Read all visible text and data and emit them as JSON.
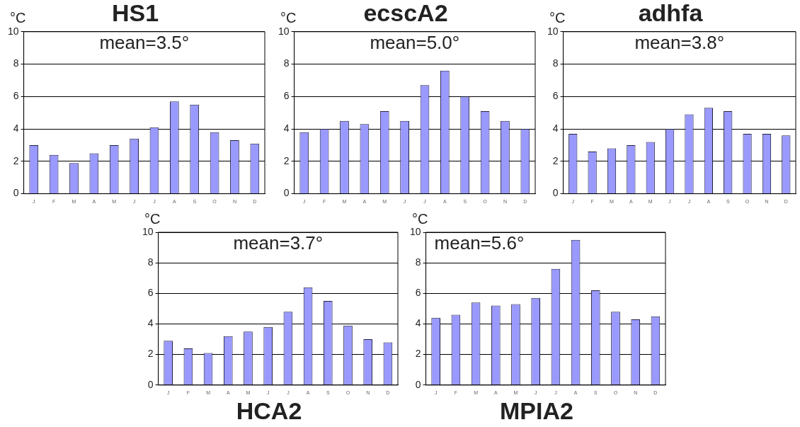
{
  "chart_data": [
    {
      "type": "bar",
      "title": "HS1",
      "ylabel": "°C",
      "annotations": [
        "mean=3.5°"
      ],
      "categories": [
        "J",
        "F",
        "M",
        "A",
        "M",
        "J",
        "J",
        "A",
        "S",
        "O",
        "N",
        "D"
      ],
      "values": [
        3.0,
        2.4,
        1.9,
        2.5,
        3.0,
        3.4,
        4.1,
        5.7,
        5.5,
        3.8,
        3.3,
        3.1
      ],
      "color": "#9999ff",
      "ylim": [
        0,
        10
      ],
      "yticks": [
        0,
        2,
        4,
        6,
        8,
        10
      ],
      "grid": "y"
    },
    {
      "type": "bar",
      "title": "ecscA2",
      "ylabel": "°C",
      "annotations": [
        "mean=5.0°"
      ],
      "categories": [
        "J",
        "F",
        "M",
        "A",
        "M",
        "J",
        "J",
        "A",
        "S",
        "O",
        "N",
        "D"
      ],
      "values": [
        3.8,
        4.0,
        4.5,
        4.3,
        5.1,
        4.5,
        6.7,
        7.6,
        6.0,
        5.1,
        4.5,
        4.0
      ],
      "color": "#9999ff",
      "ylim": [
        0,
        10
      ],
      "yticks": [
        0,
        2,
        4,
        6,
        8,
        10
      ],
      "grid": "y"
    },
    {
      "type": "bar",
      "title": "adhfa",
      "ylabel": "°C",
      "annotations": [
        "mean=3.8°"
      ],
      "categories": [
        "J",
        "F",
        "M",
        "A",
        "M",
        "J",
        "J",
        "A",
        "S",
        "O",
        "N",
        "D"
      ],
      "values": [
        3.7,
        2.6,
        2.8,
        3.0,
        3.2,
        4.0,
        4.9,
        5.3,
        5.1,
        3.7,
        3.7,
        3.6
      ],
      "color": "#9999ff",
      "ylim": [
        0,
        10
      ],
      "yticks": [
        0,
        2,
        4,
        6,
        8,
        10
      ],
      "grid": "y"
    },
    {
      "type": "bar",
      "title": "HCA2",
      "ylabel": "°C",
      "annotations": [
        "mean=3.7°"
      ],
      "categories": [
        "J",
        "F",
        "M",
        "A",
        "M",
        "J",
        "J",
        "A",
        "S",
        "O",
        "N",
        "D"
      ],
      "values": [
        2.9,
        2.4,
        2.1,
        3.2,
        3.5,
        3.8,
        4.8,
        6.4,
        5.5,
        3.9,
        3.0,
        2.8
      ],
      "color": "#9999ff",
      "ylim": [
        0,
        10
      ],
      "yticks": [
        0,
        2,
        4,
        6,
        8,
        10
      ],
      "grid": "y"
    },
    {
      "type": "bar",
      "title": "MPIA2",
      "ylabel": "°C",
      "annotations": [
        "mean=5.6°"
      ],
      "categories": [
        "J",
        "F",
        "M",
        "A",
        "M",
        "J",
        "J",
        "A",
        "S",
        "O",
        "N",
        "D"
      ],
      "values": [
        4.4,
        4.6,
        5.4,
        5.2,
        5.3,
        5.7,
        7.6,
        9.5,
        6.2,
        4.8,
        4.3,
        4.5
      ],
      "color": "#9999ff",
      "ylim": [
        0,
        10
      ],
      "yticks": [
        0,
        2,
        4,
        6,
        8,
        10
      ],
      "grid": "y"
    }
  ]
}
